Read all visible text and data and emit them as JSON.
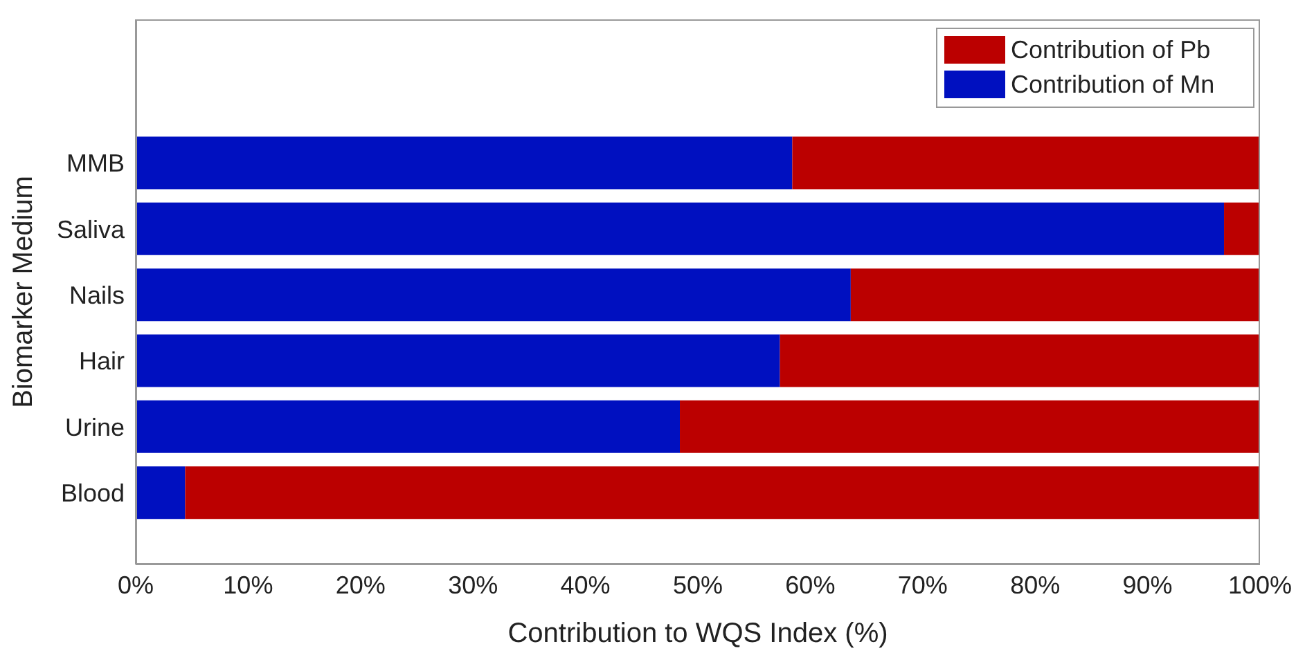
{
  "chart_data": {
    "type": "bar",
    "orientation": "horizontal",
    "stacked": true,
    "xlabel": "Contribution to WQS Index (%)",
    "ylabel": "Biomarker Medium",
    "categories": [
      "MMB",
      "Saliva",
      "Nails",
      "Hair",
      "Urine",
      "Blood"
    ],
    "series": [
      {
        "name": "Contribution of Mn",
        "color": "#0010c0",
        "values": [
          58.4,
          96.8,
          63.6,
          57.3,
          48.4,
          4.4
        ]
      },
      {
        "name": "Contribution of Pb",
        "color": "#bb0000",
        "values": [
          41.6,
          3.2,
          36.4,
          42.7,
          51.6,
          95.6
        ]
      }
    ],
    "xlim": [
      0,
      100
    ],
    "xticks": [
      {
        "value": 0,
        "label": "0%"
      },
      {
        "value": 10,
        "label": "10%"
      },
      {
        "value": 20,
        "label": "20%"
      },
      {
        "value": 30,
        "label": "30%"
      },
      {
        "value": 40,
        "label": "40%"
      },
      {
        "value": 50,
        "label": "50%"
      },
      {
        "value": 60,
        "label": "60%"
      },
      {
        "value": 70,
        "label": "70%"
      },
      {
        "value": 80,
        "label": "80%"
      },
      {
        "value": 90,
        "label": "90%"
      },
      {
        "value": 100,
        "label": "100%"
      }
    ],
    "legend": "top right",
    "grid": false
  }
}
